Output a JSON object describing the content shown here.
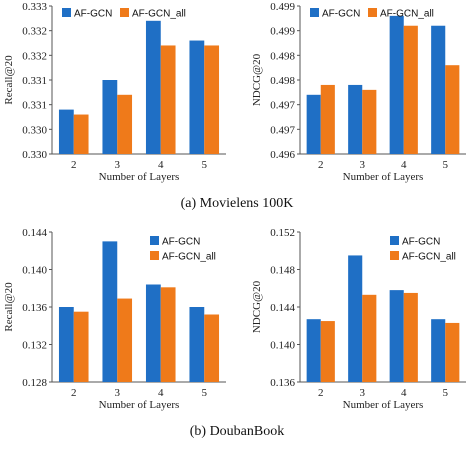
{
  "colors": {
    "AF-GCN": "#1f6fc5",
    "AF-GCN_all": "#ef7a1a",
    "axis": "#555555",
    "grid": "#d9d9d9"
  },
  "captions": [
    {
      "label": "(a) Movielens 100K"
    },
    {
      "label": "(b) DoubanBook"
    }
  ],
  "chart_data": [
    {
      "type": "bar",
      "categories": [
        "2",
        "3",
        "4",
        "5"
      ],
      "series": [
        {
          "name": "AF-GCN",
          "values": [
            0.3309,
            0.3315,
            0.3327,
            0.3323
          ]
        },
        {
          "name": "AF-GCN_all",
          "values": [
            0.3308,
            0.3312,
            0.3322,
            0.3322
          ]
        }
      ],
      "ylim": [
        0.33,
        0.333
      ],
      "yticks": [
        "0.330",
        "0.330",
        "0.331",
        "0.331",
        "0.332",
        "0.332",
        "0.333"
      ],
      "xlabel": "Number of Layers",
      "ylabel": "Recall@20",
      "legend": "top",
      "grid": false
    },
    {
      "type": "bar",
      "categories": [
        "2",
        "3",
        "4",
        "5"
      ],
      "series": [
        {
          "name": "AF-GCN",
          "values": [
            0.4972,
            0.4974,
            0.4988,
            0.4986
          ]
        },
        {
          "name": "AF-GCN_all",
          "values": [
            0.4974,
            0.4973,
            0.4986,
            0.4978
          ]
        }
      ],
      "ylim": [
        0.496,
        0.499
      ],
      "yticks": [
        "0.496",
        "0.497",
        "0.497",
        "0.498",
        "0.498",
        "0.499",
        "0.499"
      ],
      "xlabel": "Number of Layers",
      "ylabel": "NDCG@20",
      "legend": "top",
      "grid": false
    },
    {
      "type": "bar",
      "categories": [
        "2",
        "3",
        "4",
        "5"
      ],
      "series": [
        {
          "name": "AF-GCN",
          "values": [
            0.136,
            0.143,
            0.1384,
            0.136
          ]
        },
        {
          "name": "AF-GCN_all",
          "values": [
            0.1355,
            0.1369,
            0.1381,
            0.1352
          ]
        }
      ],
      "ylim": [
        0.128,
        0.144
      ],
      "yticks": [
        "0.128",
        "0.132",
        "0.136",
        "0.140",
        "0.144"
      ],
      "xlabel": "Number of Layers",
      "ylabel": "Recall@20",
      "legend": "top-right",
      "grid": false
    },
    {
      "type": "bar",
      "categories": [
        "2",
        "3",
        "4",
        "5"
      ],
      "series": [
        {
          "name": "AF-GCN",
          "values": [
            0.1427,
            0.1495,
            0.1458,
            0.1427
          ]
        },
        {
          "name": "AF-GCN_all",
          "values": [
            0.1425,
            0.1453,
            0.1455,
            0.1423
          ]
        }
      ],
      "ylim": [
        0.136,
        0.152
      ],
      "yticks": [
        "0.136",
        "0.140",
        "0.144",
        "0.148",
        "0.152"
      ],
      "xlabel": "Number of Layers",
      "ylabel": "NDCG@20",
      "legend": "top-right",
      "grid": false
    }
  ]
}
